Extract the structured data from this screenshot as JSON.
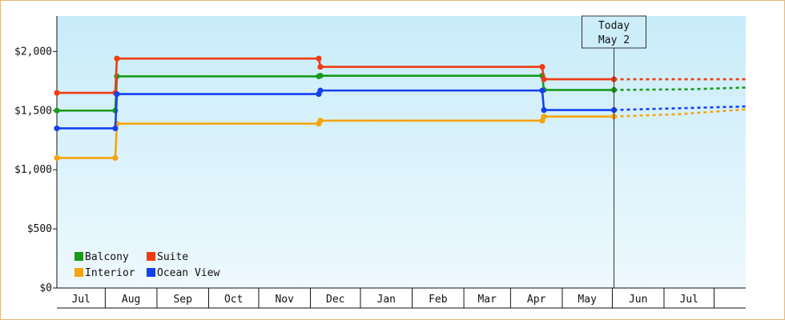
{
  "chart_data": {
    "type": "line",
    "ylim": [
      0,
      2300
    ],
    "yticks": [
      {
        "value": 0,
        "label": "$0"
      },
      {
        "value": 500,
        "label": "$500"
      },
      {
        "value": 1000,
        "label": "$1,000"
      },
      {
        "value": 1500,
        "label": "$1,500"
      },
      {
        "value": 2000,
        "label": "$2,000"
      }
    ],
    "x_months": [
      "Jul",
      "Aug",
      "Sep",
      "Oct",
      "Nov",
      "Dec",
      "Jan",
      "Feb",
      "Mar",
      "Apr",
      "May",
      "Jun",
      "Jul"
    ],
    "xlim": [
      "2021-06-02",
      "2022-07-20"
    ],
    "grid": false,
    "legend_position": "bottom-left",
    "today": {
      "date": "2022-05-02",
      "label_line1": "Today",
      "label_line2": "May 2"
    },
    "series": [
      {
        "name": "Balcony",
        "color": "#1a9a1a",
        "points": [
          [
            "2021-06-02",
            1500
          ],
          [
            "2021-07-07",
            1500
          ],
          [
            "2021-07-08",
            1790
          ],
          [
            "2021-11-06",
            1790
          ],
          [
            "2021-11-07",
            1795
          ],
          [
            "2022-03-20",
            1795
          ],
          [
            "2022-03-21",
            1675
          ],
          [
            "2022-05-02",
            1675
          ]
        ],
        "forecast": [
          [
            "2022-05-02",
            1675
          ],
          [
            "2022-06-15",
            1680
          ],
          [
            "2022-07-20",
            1695
          ]
        ]
      },
      {
        "name": "Suite",
        "color": "#f03c14",
        "points": [
          [
            "2021-06-02",
            1650
          ],
          [
            "2021-07-07",
            1650
          ],
          [
            "2021-07-08",
            1940
          ],
          [
            "2021-11-06",
            1940
          ],
          [
            "2021-11-07",
            1870
          ],
          [
            "2022-03-20",
            1870
          ],
          [
            "2022-03-21",
            1765
          ],
          [
            "2022-05-02",
            1765
          ]
        ],
        "forecast": [
          [
            "2022-05-02",
            1765
          ],
          [
            "2022-07-20",
            1765
          ]
        ]
      },
      {
        "name": "Interior",
        "color": "#f5a50f",
        "points": [
          [
            "2021-06-02",
            1100
          ],
          [
            "2021-07-07",
            1100
          ],
          [
            "2021-07-08",
            1390
          ],
          [
            "2021-11-06",
            1390
          ],
          [
            "2021-11-07",
            1415
          ],
          [
            "2022-03-20",
            1415
          ],
          [
            "2022-03-21",
            1450
          ],
          [
            "2022-05-02",
            1450
          ]
        ],
        "forecast": [
          [
            "2022-05-02",
            1450
          ],
          [
            "2022-06-10",
            1470
          ],
          [
            "2022-07-20",
            1510
          ]
        ]
      },
      {
        "name": "Ocean View",
        "color": "#1440f0",
        "points": [
          [
            "2021-06-02",
            1350
          ],
          [
            "2021-07-07",
            1350
          ],
          [
            "2021-07-08",
            1640
          ],
          [
            "2021-11-06",
            1640
          ],
          [
            "2021-11-07",
            1670
          ],
          [
            "2022-03-20",
            1670
          ],
          [
            "2022-03-21",
            1505
          ],
          [
            "2022-05-02",
            1505
          ]
        ],
        "forecast": [
          [
            "2022-05-02",
            1505
          ],
          [
            "2022-06-10",
            1520
          ],
          [
            "2022-07-20",
            1535
          ]
        ]
      }
    ]
  }
}
